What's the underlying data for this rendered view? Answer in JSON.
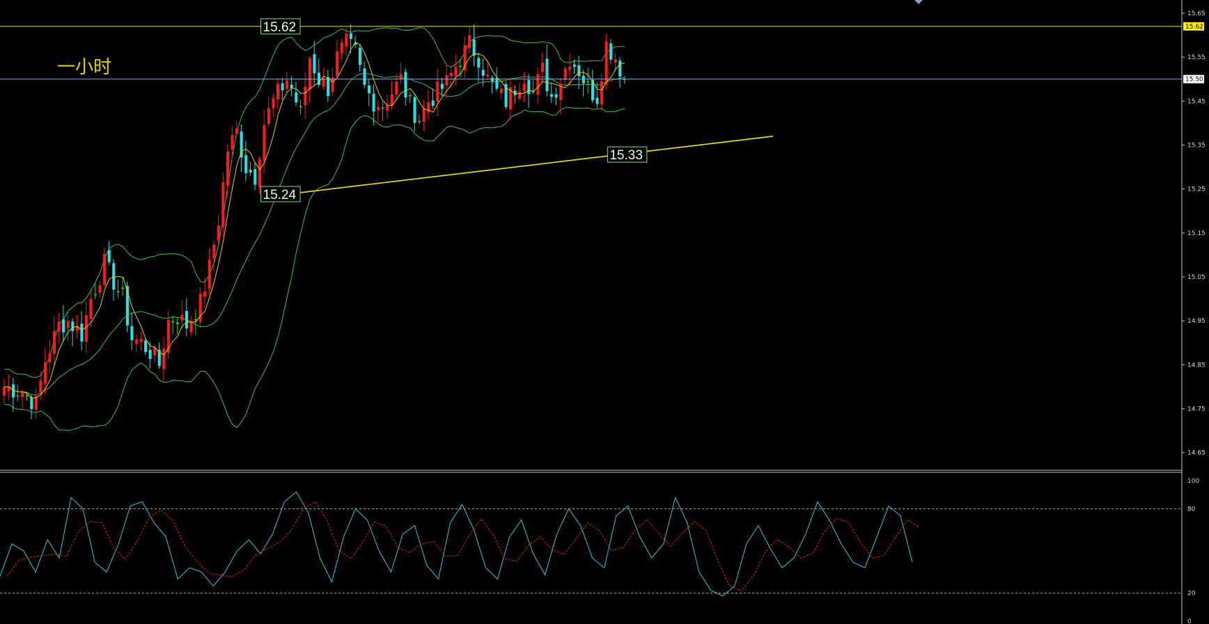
{
  "timeframe_label": "一小时",
  "colors": {
    "background": "#000000",
    "bull_candle": "#ff1a1a",
    "bear_candle": "#22e4e4",
    "doji_candle": "#33cc33",
    "bollinger": "#3fbf5a",
    "moving_average": "#e8d200",
    "level_line": "#f2e800",
    "current_price_line": "#7fb2e6",
    "stoch_k": "#36c9d6",
    "stoch_d": "#e02020"
  },
  "chart_data": [
    {
      "type": "candlestick",
      "title": "",
      "ylim": [
        14.61,
        15.68
      ],
      "y_ticks": [
        "15.65",
        "15.55",
        "15.45",
        "15.35",
        "15.25",
        "15.15",
        "15.05",
        "14.95",
        "14.85",
        "14.75",
        "14.65"
      ],
      "grid": false,
      "levels": [
        {
          "name": "resistance",
          "value": 15.62,
          "label": "15.62"
        },
        {
          "name": "current-price",
          "value": 15.5,
          "label": "15.50"
        }
      ],
      "support_trendline": {
        "start": {
          "bar": 64,
          "price": 15.24
        },
        "end": {
          "bar": 169,
          "price": 15.37
        },
        "labels": [
          {
            "bar": 61,
            "price": 15.24,
            "text": "15.24"
          },
          {
            "bar": 137,
            "price": 15.33,
            "text": "15.33"
          }
        ]
      },
      "top_annotation_label": "15.62",
      "right_axis_badges": [
        "15.62",
        "15.50"
      ],
      "indicators": [
        "Bollinger Bands (20)",
        "Moving average (5)"
      ],
      "anchors": [
        [
          0,
          14.8
        ],
        [
          4,
          14.79
        ],
        [
          7,
          14.76
        ],
        [
          9,
          14.86
        ],
        [
          12,
          14.94
        ],
        [
          14,
          14.95
        ],
        [
          17,
          14.92
        ],
        [
          19,
          15.0
        ],
        [
          22,
          15.08
        ],
        [
          24,
          15.04
        ],
        [
          26,
          15.0
        ],
        [
          28,
          14.91
        ],
        [
          30,
          14.9
        ],
        [
          32,
          14.88
        ],
        [
          34,
          14.85
        ],
        [
          36,
          14.95
        ],
        [
          38,
          14.96
        ],
        [
          40,
          14.94
        ],
        [
          43,
          14.99
        ],
        [
          45,
          15.07
        ],
        [
          47,
          15.18
        ],
        [
          49,
          15.34
        ],
        [
          51,
          15.38
        ],
        [
          53,
          15.3
        ],
        [
          55,
          15.28
        ],
        [
          57,
          15.4
        ],
        [
          59,
          15.45
        ],
        [
          62,
          15.5
        ],
        [
          63,
          15.48
        ],
        [
          65,
          15.42
        ],
        [
          67,
          15.55
        ],
        [
          69,
          15.5
        ],
        [
          71,
          15.48
        ],
        [
          73,
          15.55
        ],
        [
          75,
          15.58
        ],
        [
          77,
          15.56
        ],
        [
          79,
          15.48
        ],
        [
          81,
          15.45
        ],
        [
          83,
          15.44
        ],
        [
          85,
          15.47
        ],
        [
          87,
          15.5
        ],
        [
          89,
          15.44
        ],
        [
          91,
          15.41
        ],
        [
          93,
          15.45
        ],
        [
          95,
          15.47
        ],
        [
          97,
          15.49
        ],
        [
          99,
          15.53
        ],
        [
          102,
          15.58
        ],
        [
          104,
          15.55
        ],
        [
          106,
          15.5
        ],
        [
          108,
          15.47
        ],
        [
          110,
          15.45
        ],
        [
          112,
          15.48
        ],
        [
          114,
          15.51
        ],
        [
          116,
          15.47
        ],
        [
          118,
          15.52
        ],
        [
          120,
          15.46
        ],
        [
          122,
          15.5
        ],
        [
          124,
          15.55
        ],
        [
          126,
          15.52
        ],
        [
          128,
          15.48
        ],
        [
          130,
          15.46
        ],
        [
          132,
          15.58
        ],
        [
          134,
          15.55
        ],
        [
          136,
          15.5
        ]
      ]
    },
    {
      "type": "line",
      "name": "stochastic-oscillator",
      "ylim": [
        0,
        100
      ],
      "y_ticks": [
        "100",
        "80",
        "20",
        "0"
      ],
      "reference_levels": [
        80,
        20
      ],
      "series": [
        {
          "name": "",
          "color": "#36c9d6",
          "values": [
            32,
            55,
            50,
            35,
            58,
            45,
            88,
            80,
            42,
            35,
            55,
            82,
            85,
            70,
            60,
            30,
            38,
            35,
            25,
            35,
            50,
            58,
            48,
            62,
            85,
            92,
            78,
            45,
            28,
            60,
            80,
            72,
            50,
            35,
            62,
            68,
            40,
            30,
            70,
            83,
            65,
            38,
            30,
            60,
            72,
            48,
            33,
            62,
            80,
            68,
            45,
            38,
            75,
            82,
            60,
            45,
            55,
            88,
            70,
            35,
            22,
            18,
            25,
            55,
            68,
            52,
            38,
            45,
            62,
            85,
            72,
            55,
            42,
            38,
            60,
            82,
            75,
            42
          ]
        }
      ]
    }
  ]
}
